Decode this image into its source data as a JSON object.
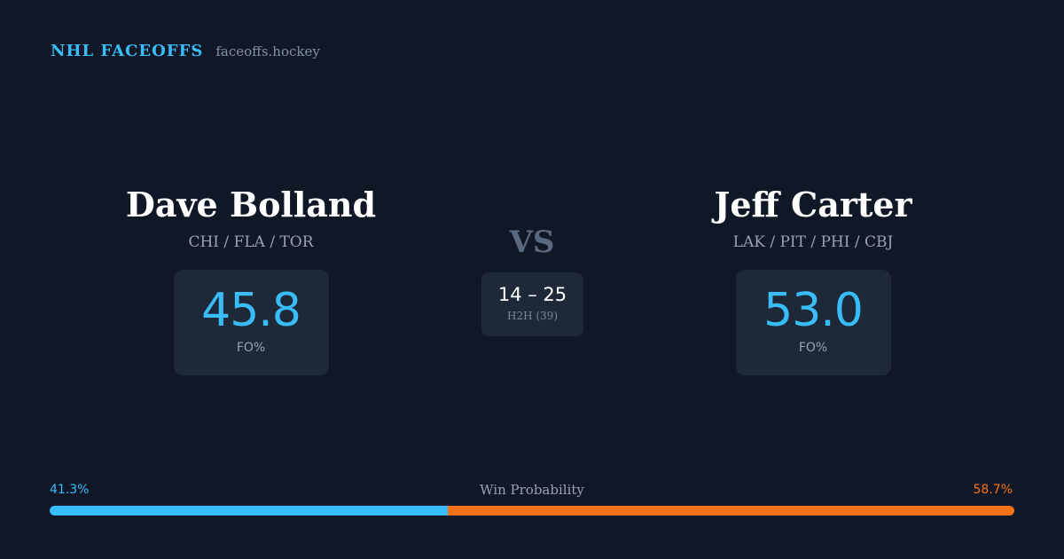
{
  "brand": {
    "name": "NHL FACEOFFS",
    "url": "faceoffs.hockey"
  },
  "players": {
    "left": {
      "name": "Dave Bolland",
      "teams": "CHI / FLA / TOR",
      "fo_pct": "45.8",
      "fo_label": "FO%"
    },
    "right": {
      "name": "Jeff Carter",
      "teams": "LAK / PIT / PHI / CBJ",
      "fo_pct": "53.0",
      "fo_label": "FO%"
    }
  },
  "versus": {
    "label": "VS",
    "h2h_score": "14 – 25",
    "h2h_label": "H2H (39)"
  },
  "win_probability": {
    "title": "Win Probability",
    "left_label": "41.3%",
    "right_label": "58.7%",
    "left_value": 41.3,
    "right_value": 58.7,
    "left_color": "#38bdf8",
    "right_color": "#f97316"
  },
  "colors": {
    "background": "#101828",
    "card": "#1d2839",
    "accent": "#38bdf8",
    "opponent": "#f97316"
  }
}
